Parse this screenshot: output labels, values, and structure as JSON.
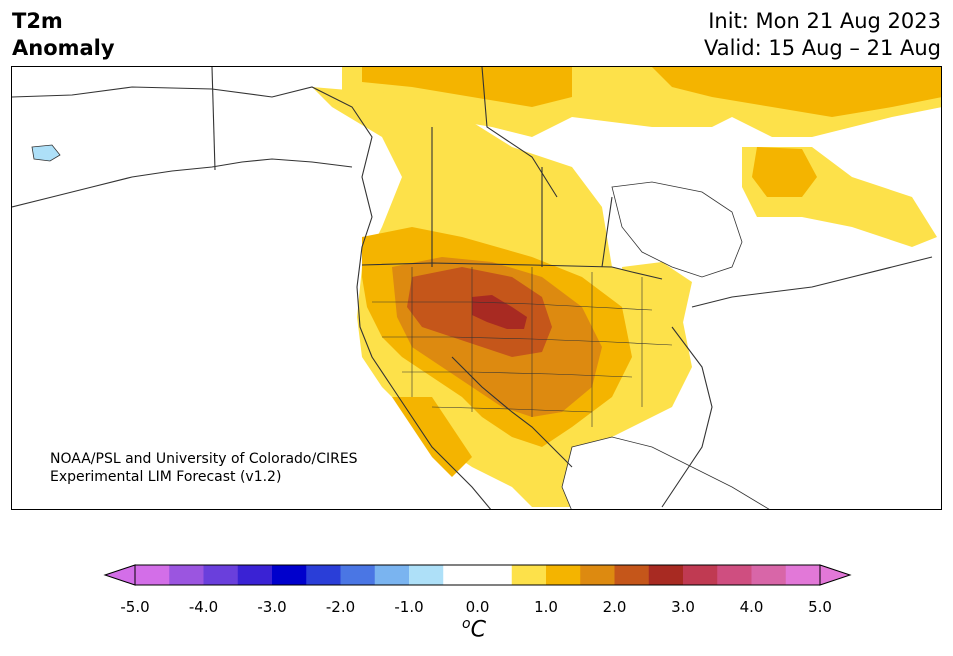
{
  "title": {
    "line1": "T2m",
    "line2": "Anomaly"
  },
  "dates": {
    "init": "Init: Mon 21 Aug 2023",
    "valid": "Valid: 15 Aug – 21 Aug"
  },
  "credit": {
    "line1": "NOAA/PSL and University of Colorado/CIRES",
    "line2": "Experimental LIM Forecast (v1.2)"
  },
  "colorbar": {
    "colors": [
      "#d36ee8",
      "#9b55e0",
      "#6a3fdc",
      "#3a22d4",
      "#0000cc",
      "#2a3ed8",
      "#4a76e4",
      "#7ab4f0",
      "#aee0f8",
      "#ffffff",
      "#ffffff",
      "#fde14a",
      "#f4b400",
      "#dd8a10",
      "#c5561a",
      "#a82a22",
      "#c03a52",
      "#cf4e80",
      "#d866a8",
      "#e278d8"
    ],
    "under_color": "#d36ee8",
    "over_color": "#e278d8",
    "tick_labels": [
      "-5.0",
      "-4.0",
      "-3.0",
      "-2.0",
      "-1.0",
      "0.0",
      "1.0",
      "2.0",
      "3.0",
      "4.0",
      "5.0"
    ],
    "unit_base": "C",
    "unit_sup": "o"
  },
  "map": {
    "region": "North America",
    "legend_items": []
  }
}
